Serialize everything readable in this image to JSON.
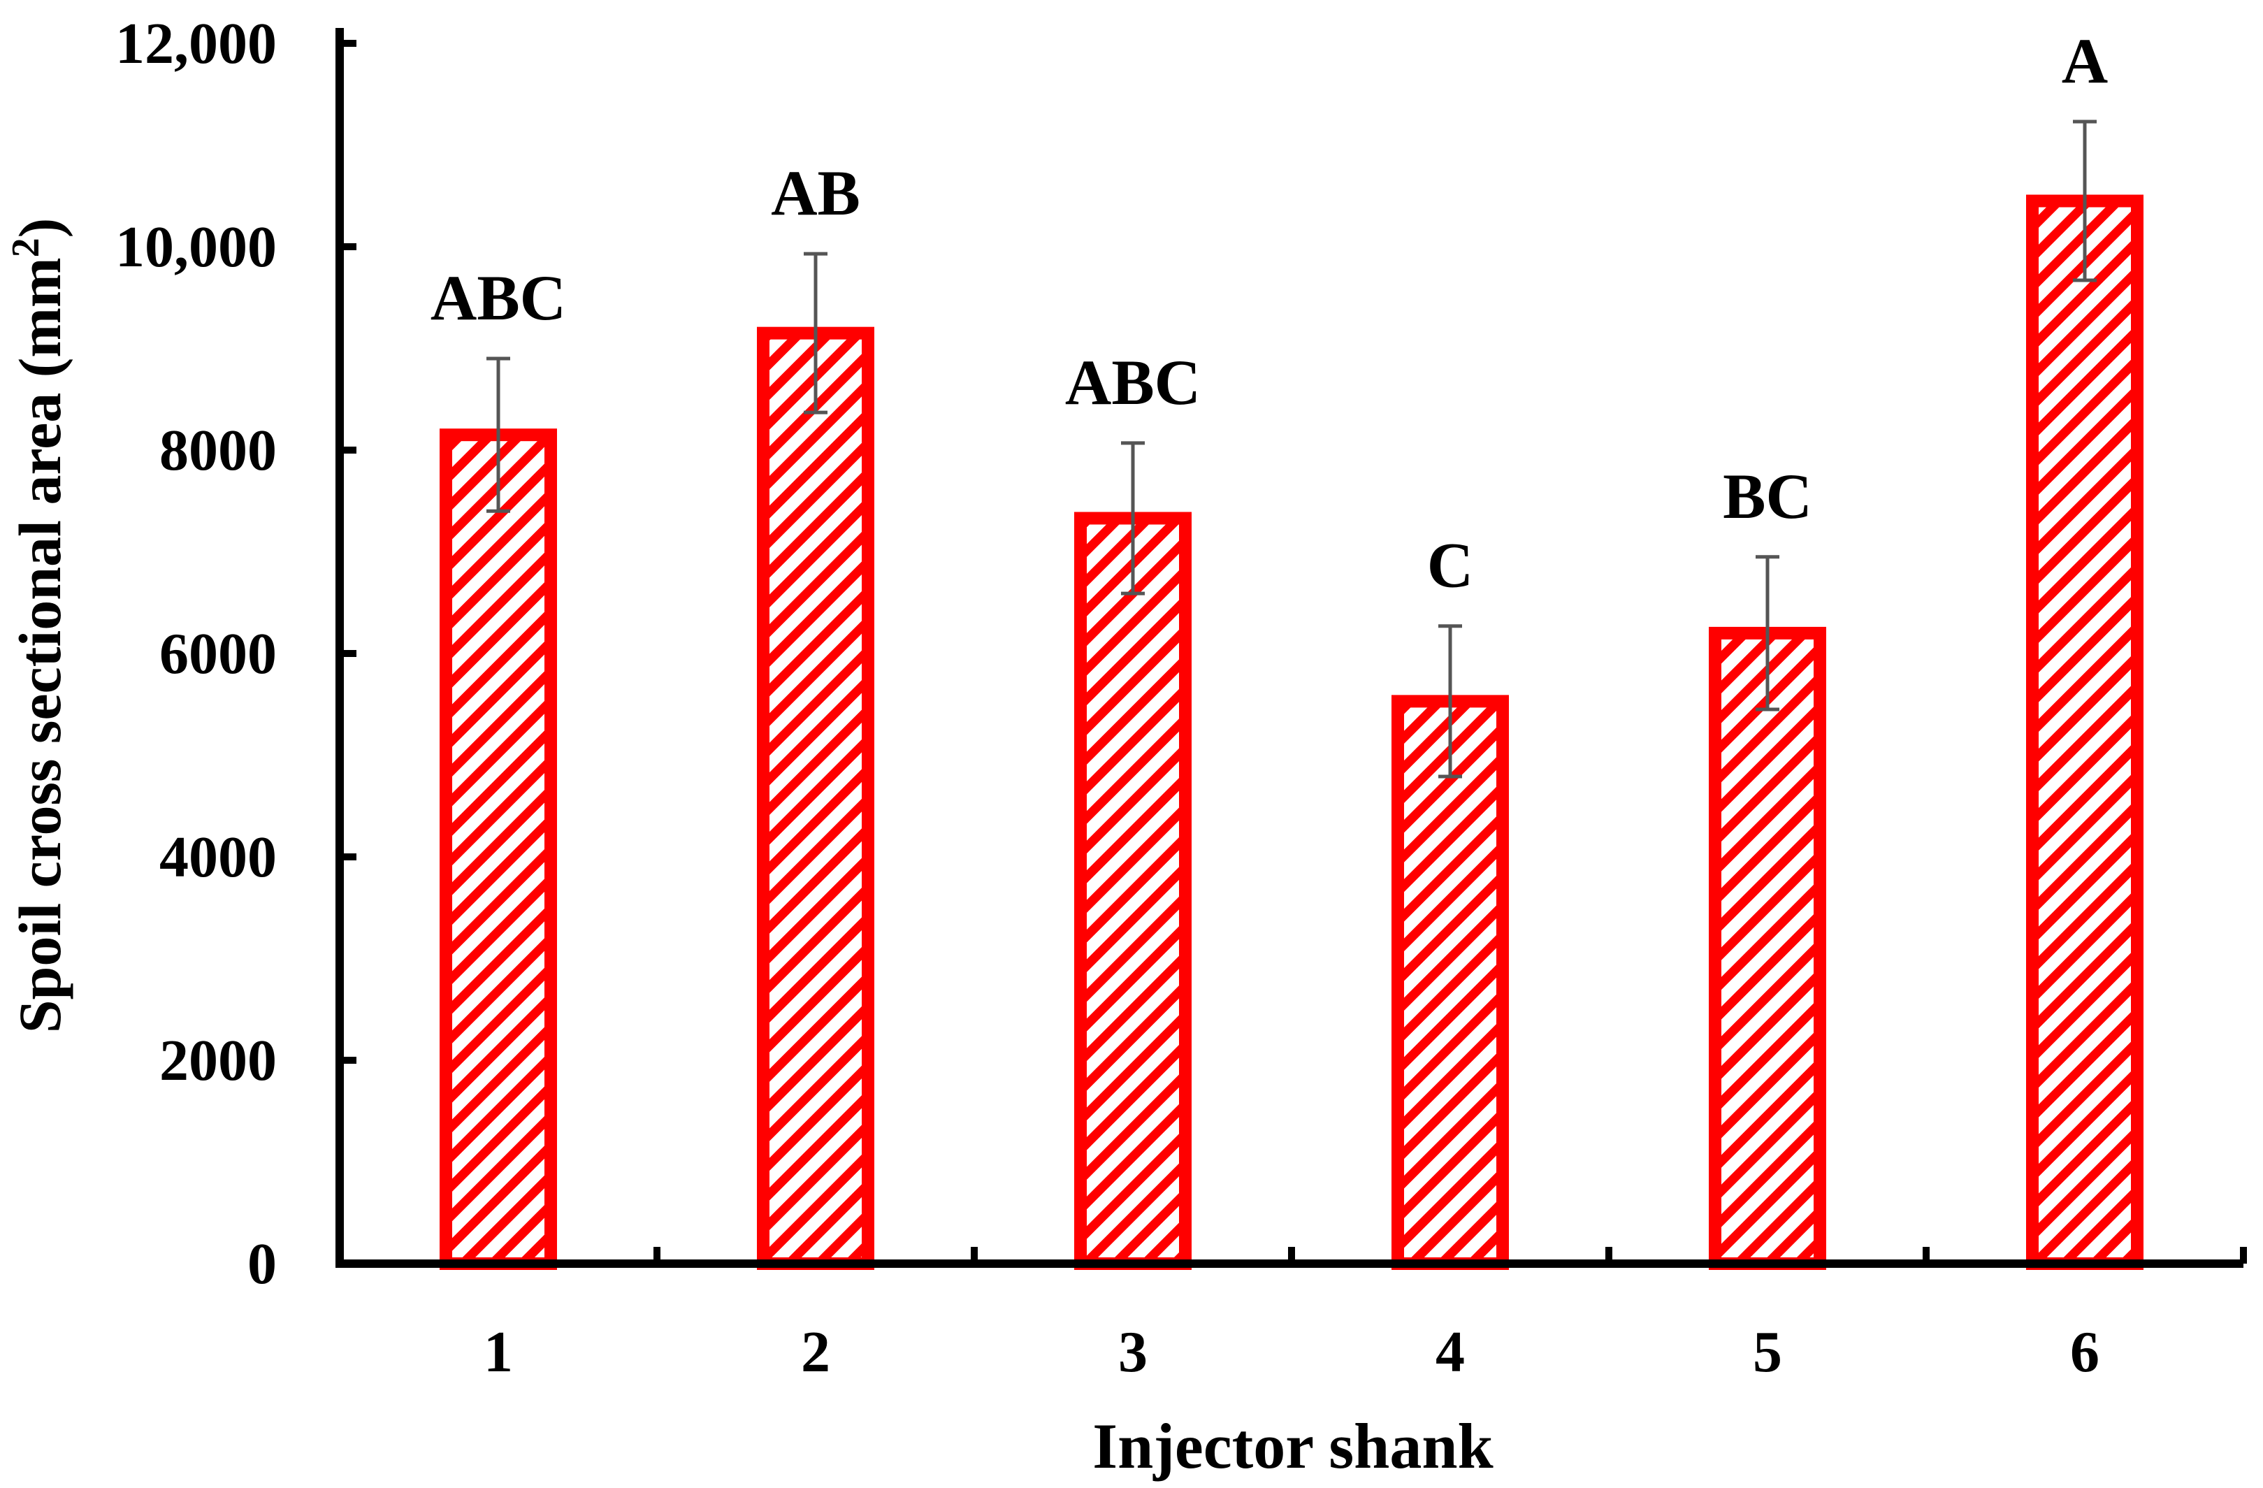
{
  "chart_data": {
    "type": "bar",
    "title": "",
    "xlabel": "Injector shank",
    "ylabel": "Spoil cross sectional area (mm²)",
    "ylabel_parts": {
      "main": "Spoil cross sectional area (mm",
      "sup": "2",
      "tail": ")"
    },
    "categories": [
      "1",
      "2",
      "3",
      "4",
      "5",
      "6"
    ],
    "series": [
      {
        "name": "Spoil cross sectional area",
        "values": [
          8150,
          9150,
          7330,
          5530,
          6200,
          10450
        ],
        "errors": [
          750,
          780,
          740,
          740,
          750,
          780
        ],
        "letters": [
          "ABC",
          "AB",
          "ABC",
          "C",
          "BC",
          "A"
        ]
      }
    ],
    "ylim": [
      0,
      12000
    ],
    "yticks": [
      0,
      2000,
      4000,
      6000,
      8000,
      10000,
      12000
    ],
    "ytick_labels": [
      "0",
      "2000",
      "4000",
      "6000",
      "8000",
      "10,000",
      "12,000"
    ],
    "grid": false,
    "legend": "none",
    "colors": {
      "bar_edge": "#ff0000",
      "hatch": "#ff0000",
      "bar_fill": "#ffffff",
      "error_bar": "#555555",
      "axis": "#000000"
    }
  }
}
